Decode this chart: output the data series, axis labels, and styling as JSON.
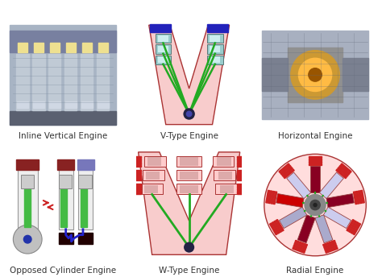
{
  "background_color": "#ffffff",
  "labels": [
    "Inline Vertical Engine",
    "V-Type Engine",
    "Horizontal Engine",
    "Opposed Cylinder Engine",
    "W-Type Engine",
    "Radial Engine"
  ],
  "label_fontsize": 7.5,
  "label_color": "#333333",
  "figsize": [
    4.74,
    3.44
  ],
  "dpi": 100,
  "colors": {
    "pink": "#F5BBBB",
    "light_pink": "#F8CCCC",
    "blue": "#2222BB",
    "med_blue": "#4444CC",
    "light_blue": "#9999DD",
    "green": "#22AA22",
    "dark_green": "#116611",
    "dark_red": "#881111",
    "red": "#CC2222",
    "gray": "#AAAAAA",
    "dark_gray": "#555555",
    "white": "#FFFFFF",
    "black": "#111111",
    "teal": "#99CCCC",
    "light_teal": "#CCEEEE",
    "dark_brown": "#663333",
    "maroon": "#660000",
    "lavender": "#AAAADD",
    "outline": "#AA3333"
  }
}
